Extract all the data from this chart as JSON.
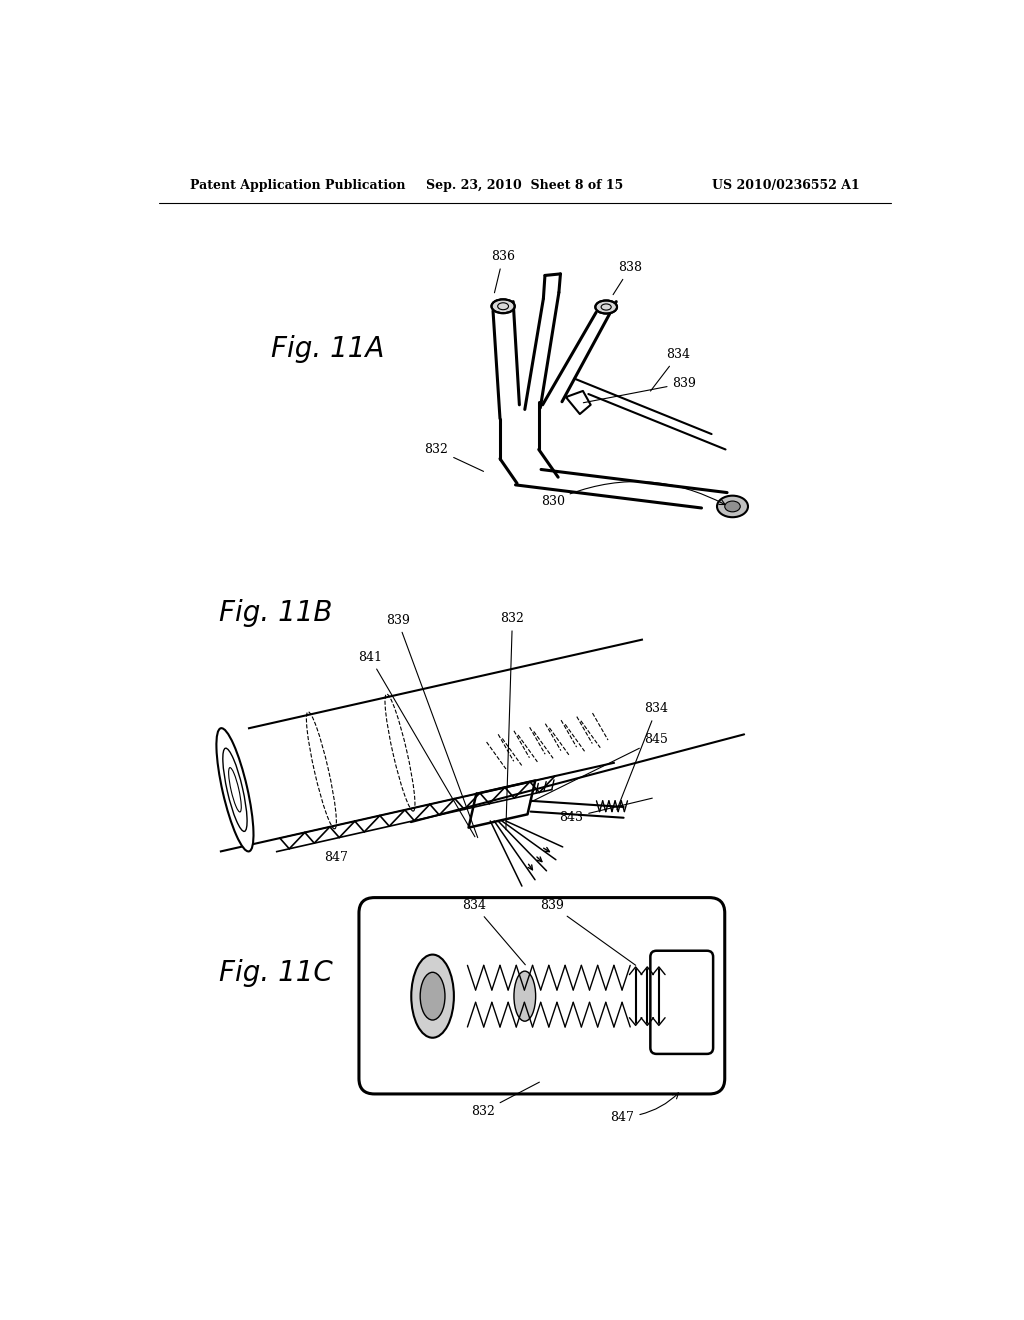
{
  "background_color": "#ffffff",
  "header_left": "Patent Application Publication",
  "header_center": "Sep. 23, 2010  Sheet 8 of 15",
  "header_right": "US 2010/0236552 A1",
  "fig11A_label": "Fig. 11A",
  "fig11B_label": "Fig. 11B",
  "fig11C_label": "Fig. 11C",
  "text_color": "#000000",
  "line_color": "#000000"
}
